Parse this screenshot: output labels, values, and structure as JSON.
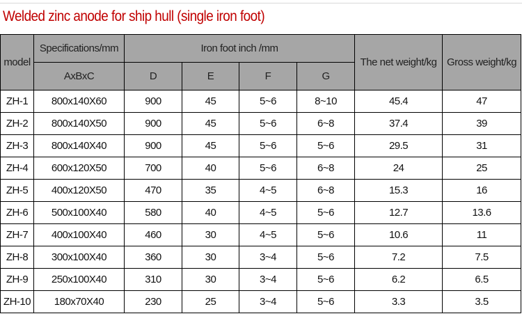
{
  "title": "Welded zinc anode for ship hull (single iron foot)",
  "header": {
    "model": "model",
    "spec": "Specifications/mm",
    "spec_sub": "AxBxC",
    "iron": "Iron foot inch /mm",
    "D": "D",
    "E": "E",
    "F": "F",
    "G": "G",
    "net": "The net weight/kg",
    "gross": "Gross weight/kg"
  },
  "rows": [
    [
      "ZH-1",
      "800x140X60",
      "900",
      "45",
      "5~6",
      "8~10",
      "45.4",
      "47"
    ],
    [
      "ZH-2",
      "800x140X50",
      "900",
      "45",
      "5~6",
      "6~8",
      "37.4",
      "39"
    ],
    [
      "ZH-3",
      "800x140X40",
      "900",
      "45",
      "5~6",
      "5~6",
      "29.5",
      "31"
    ],
    [
      "ZH-4",
      "600x120X50",
      "700",
      "40",
      "5~6",
      "6~8",
      "24",
      "25"
    ],
    [
      "ZH-5",
      "400x120X50",
      "470",
      "35",
      "4~5",
      "6~8",
      "15.3",
      "16"
    ],
    [
      "ZH-6",
      "500x100X40",
      "580",
      "40",
      "4~5",
      "5~6",
      "12.7",
      "13.6"
    ],
    [
      "ZH-7",
      "400x100X40",
      "460",
      "30",
      "4~5",
      "5~6",
      "10.6",
      "11"
    ],
    [
      "ZH-8",
      "300x100X40",
      "360",
      "30",
      "3~4",
      "5~6",
      "7.2",
      "7.5"
    ],
    [
      "ZH-9",
      "250x100X40",
      "310",
      "30",
      "3~4",
      "5~6",
      "6.2",
      "6.5"
    ],
    [
      "ZH-10",
      "180x70X40",
      "230",
      "25",
      "3~4",
      "5~6",
      "3.3",
      "3.5"
    ]
  ]
}
